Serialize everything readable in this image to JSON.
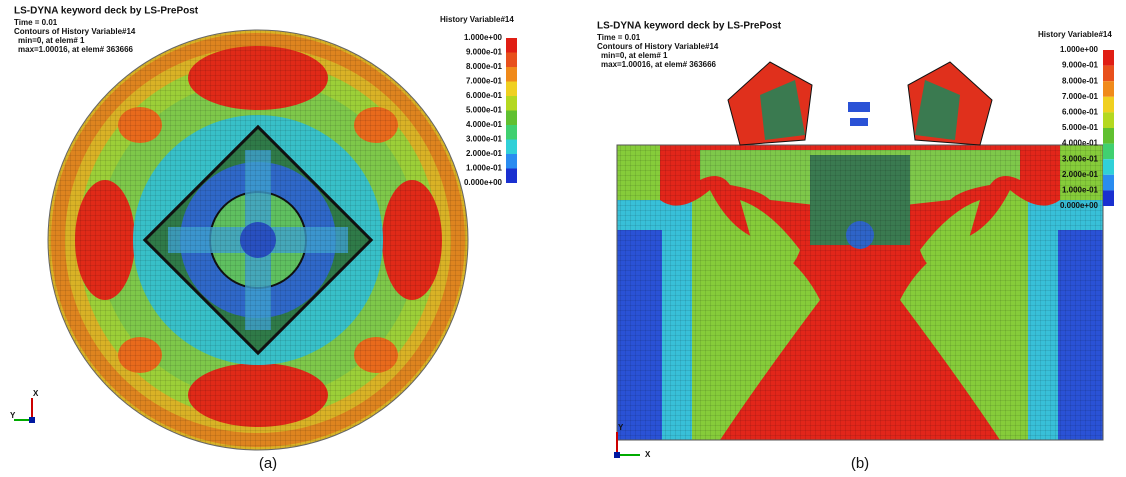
{
  "panels": [
    {
      "header": {
        "title": "LS-DYNA keyword deck by LS-PrePost",
        "time": "Time =      0.01",
        "contours": "Contours of History Variable#14",
        "min": "min=0, at elem# 1",
        "max": "max=1.00016, at elem# 363666"
      },
      "legend": {
        "title": "History Variable#14",
        "labels": [
          "1.000e+00",
          "9.000e-01",
          "8.000e-01",
          "7.000e-01",
          "6.000e-01",
          "5.000e-01",
          "4.000e-01",
          "3.000e-01",
          "2.000e-01",
          "1.000e-01",
          "0.000e+00"
        ]
      },
      "axes": [
        "X",
        "Y"
      ],
      "caption": "(a)"
    },
    {
      "header": {
        "title": "LS-DYNA keyword deck by LS-PrePost",
        "time": "Time =      0.01",
        "contours": "Contours of History Variable#14",
        "min": "min=0, at elem# 1",
        "max": "max=1.00016, at elem# 363666"
      },
      "legend": {
        "title": "History Variable#14",
        "labels": [
          "1.000e+00",
          "9.000e-01",
          "8.000e-01",
          "7.000e-01",
          "6.000e-01",
          "5.000e-01",
          "4.000e-01",
          "3.000e-01",
          "2.000e-01",
          "1.000e-01",
          "0.000e+00"
        ]
      },
      "axes": [
        "Y",
        "X"
      ],
      "caption": "(b)"
    }
  ]
}
